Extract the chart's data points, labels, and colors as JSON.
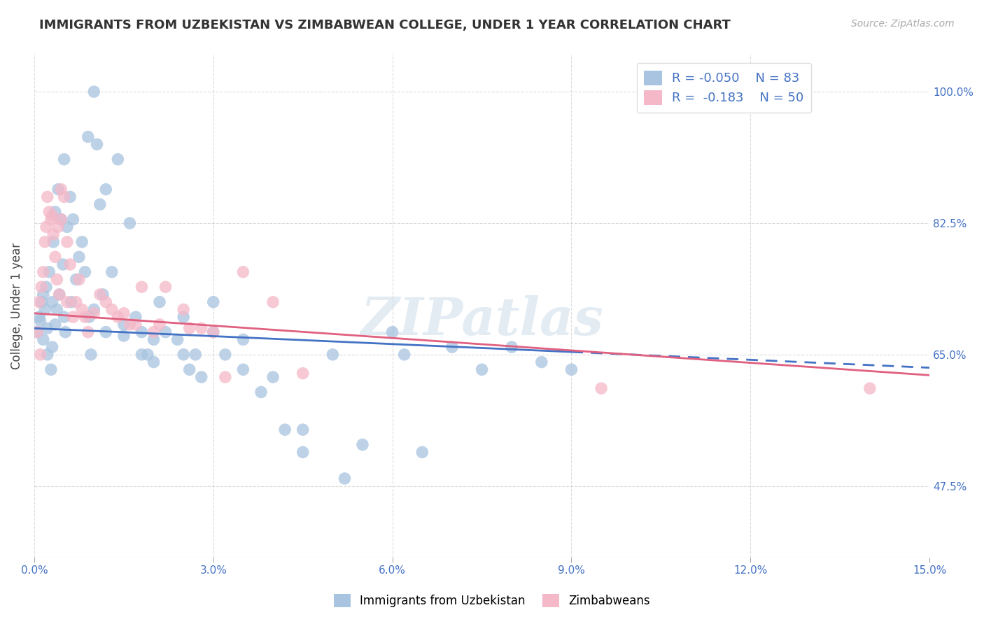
{
  "title": "IMMIGRANTS FROM UZBEKISTAN VS ZIMBABWEAN COLLEGE, UNDER 1 YEAR CORRELATION CHART",
  "source": "Source: ZipAtlas.com",
  "xlabel_ticks": [
    "0.0%",
    "3.0%",
    "6.0%",
    "9.0%",
    "12.0%",
    "15.0%"
  ],
  "xlabel_vals": [
    0.0,
    3.0,
    6.0,
    9.0,
    12.0,
    15.0
  ],
  "ylabel_ticks": [
    "47.5%",
    "65.0%",
    "82.5%",
    "100.0%"
  ],
  "ylabel_vals": [
    47.5,
    65.0,
    82.5,
    100.0
  ],
  "xmin": 0.0,
  "xmax": 15.0,
  "ymin": 38.0,
  "ymax": 105.0,
  "watermark": "ZIPatlas",
  "ylabel": "College, Under 1 year",
  "legend_uzbek_label": "Immigrants from Uzbekistan",
  "legend_zimb_label": "Zimbabweans",
  "uzbek_R": -0.05,
  "uzbek_N": 83,
  "zimb_R": -0.183,
  "zimb_N": 50,
  "uzbek_color": "#a8c4e0",
  "uzbek_line_color": "#4472c4",
  "zimb_color": "#f4b8c8",
  "zimb_line_color": "#e06080",
  "uzbek_trend_solid_end": 9.0,
  "uzbek_scatter_x": [
    0.05,
    0.08,
    0.1,
    0.12,
    0.15,
    0.15,
    0.18,
    0.2,
    0.22,
    0.22,
    0.25,
    0.28,
    0.3,
    0.3,
    0.32,
    0.35,
    0.35,
    0.38,
    0.4,
    0.42,
    0.45,
    0.48,
    0.5,
    0.5,
    0.52,
    0.55,
    0.6,
    0.62,
    0.65,
    0.7,
    0.75,
    0.8,
    0.85,
    0.9,
    0.92,
    0.95,
    1.0,
    1.05,
    1.1,
    1.15,
    1.2,
    1.3,
    1.4,
    1.5,
    1.6,
    1.7,
    1.8,
    1.9,
    2.0,
    2.1,
    2.2,
    2.4,
    2.5,
    2.6,
    2.7,
    2.8,
    3.0,
    3.2,
    3.5,
    3.8,
    4.0,
    4.2,
    4.5,
    5.0,
    5.5,
    6.0,
    6.2,
    7.0,
    7.5,
    8.0,
    8.5,
    9.0,
    1.0,
    1.2,
    1.5,
    1.8,
    2.0,
    2.5,
    3.0,
    3.5,
    4.5,
    5.2,
    6.5
  ],
  "uzbek_scatter_y": [
    68.0,
    70.0,
    69.5,
    72.0,
    73.0,
    67.0,
    71.0,
    74.0,
    68.5,
    65.0,
    76.0,
    63.0,
    72.0,
    66.0,
    80.0,
    84.0,
    69.0,
    71.0,
    87.0,
    73.0,
    83.0,
    77.0,
    91.0,
    70.0,
    68.0,
    82.0,
    86.0,
    72.0,
    83.0,
    75.0,
    78.0,
    80.0,
    76.0,
    94.0,
    70.0,
    65.0,
    100.0,
    93.0,
    85.0,
    73.0,
    87.0,
    76.0,
    91.0,
    69.0,
    82.5,
    70.0,
    68.0,
    65.0,
    67.0,
    72.0,
    68.0,
    67.0,
    70.0,
    63.0,
    65.0,
    62.0,
    72.0,
    65.0,
    67.0,
    60.0,
    62.0,
    55.0,
    52.0,
    65.0,
    53.0,
    68.0,
    65.0,
    66.0,
    63.0,
    66.0,
    64.0,
    63.0,
    71.0,
    68.0,
    67.5,
    65.0,
    64.0,
    65.0,
    68.0,
    63.0,
    55.0,
    48.5,
    52.0
  ],
  "zimb_scatter_x": [
    0.05,
    0.08,
    0.1,
    0.12,
    0.15,
    0.18,
    0.2,
    0.22,
    0.25,
    0.28,
    0.3,
    0.32,
    0.35,
    0.38,
    0.4,
    0.42,
    0.45,
    0.5,
    0.55,
    0.6,
    0.65,
    0.7,
    0.75,
    0.8,
    0.85,
    0.9,
    1.0,
    1.1,
    1.2,
    1.3,
    1.5,
    1.6,
    1.8,
    2.0,
    2.2,
    2.5,
    2.8,
    3.0,
    3.5,
    4.0,
    4.5,
    9.5,
    1.4,
    1.7,
    2.1,
    2.6,
    3.2,
    0.45,
    0.55,
    14.0
  ],
  "zimb_scatter_y": [
    68.0,
    72.0,
    65.0,
    74.0,
    76.0,
    80.0,
    82.0,
    86.0,
    84.0,
    83.0,
    83.5,
    81.0,
    78.0,
    75.0,
    82.0,
    73.0,
    87.0,
    86.0,
    72.0,
    77.0,
    70.0,
    72.0,
    75.0,
    71.0,
    70.0,
    68.0,
    70.5,
    73.0,
    72.0,
    71.0,
    70.5,
    69.0,
    74.0,
    68.0,
    74.0,
    71.0,
    68.5,
    68.0,
    76.0,
    72.0,
    62.5,
    60.5,
    70.0,
    69.0,
    69.0,
    68.5,
    62.0,
    83.0,
    80.0,
    60.5
  ]
}
